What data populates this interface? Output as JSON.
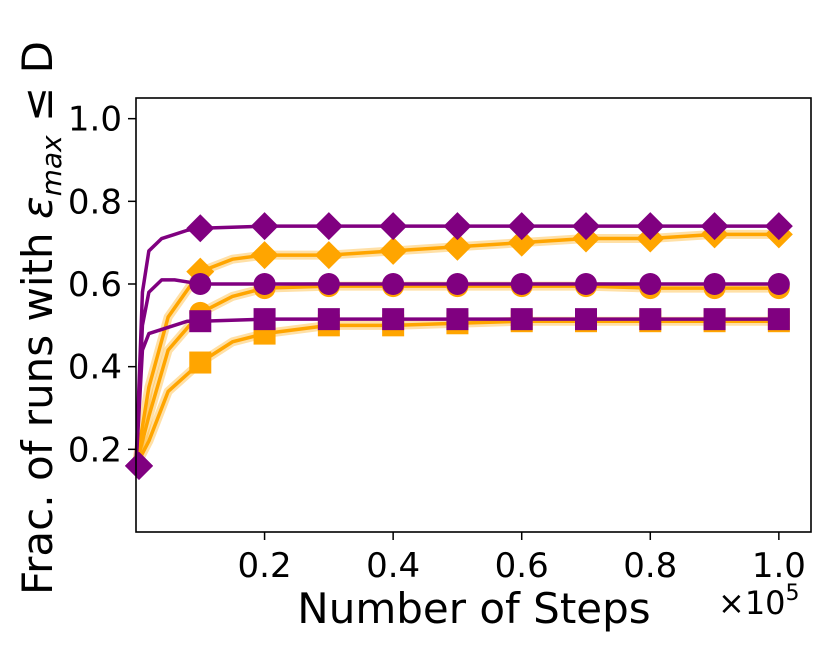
{
  "chart_data": {
    "type": "line",
    "xlabel": "Number of Steps",
    "ylabel_prefix": "Frac. of runs with ",
    "ylabel_eps": "ε",
    "ylabel_sub": "max",
    "ylabel_suffix": " ≤ D",
    "x_multiplier_base": "×10",
    "x_multiplier_exp": "5",
    "xlim": [
      0.0,
      1.05
    ],
    "ylim": [
      0.0,
      1.05
    ],
    "x_ticks": [
      0.2,
      0.4,
      0.6,
      0.8,
      1.0
    ],
    "x_tick_labels": [
      "0.2",
      "0.4",
      "0.6",
      "0.8",
      "1.0"
    ],
    "y_ticks": [
      0.2,
      0.4,
      0.6,
      0.8,
      1.0
    ],
    "y_tick_labels": [
      "0.2",
      "0.4",
      "0.6",
      "0.8",
      "1.0"
    ],
    "grid": false,
    "colors": {
      "purple": "#800080",
      "orange": "#FFA500"
    },
    "series": [
      {
        "color": "#FFA500",
        "marker": "diamond",
        "x": [
          0.0,
          0.02,
          0.05,
          0.1,
          0.15,
          0.2,
          0.3,
          0.4,
          0.5,
          0.6,
          0.7,
          0.8,
          0.9,
          1.0
        ],
        "y": [
          0.16,
          0.35,
          0.52,
          0.63,
          0.66,
          0.67,
          0.67,
          0.68,
          0.69,
          0.7,
          0.71,
          0.71,
          0.72,
          0.72
        ]
      },
      {
        "color": "#FFA500",
        "marker": "circle",
        "x": [
          0.0,
          0.02,
          0.05,
          0.1,
          0.15,
          0.2,
          0.3,
          0.4,
          0.5,
          0.6,
          0.7,
          0.8,
          0.9,
          1.0
        ],
        "y": [
          0.16,
          0.28,
          0.44,
          0.53,
          0.57,
          0.59,
          0.595,
          0.595,
          0.595,
          0.595,
          0.595,
          0.59,
          0.59,
          0.59
        ]
      },
      {
        "color": "#FFA500",
        "marker": "square",
        "x": [
          0.0,
          0.02,
          0.05,
          0.1,
          0.15,
          0.2,
          0.3,
          0.4,
          0.5,
          0.6,
          0.7,
          0.8,
          0.9,
          1.0
        ],
        "y": [
          0.16,
          0.22,
          0.34,
          0.41,
          0.46,
          0.48,
          0.5,
          0.5,
          0.505,
          0.51,
          0.51,
          0.51,
          0.51,
          0.51
        ]
      },
      {
        "color": "#800080",
        "marker": "diamond",
        "x": [
          0.0,
          0.01,
          0.02,
          0.04,
          0.06,
          0.08,
          0.1,
          0.2,
          0.3,
          0.4,
          0.5,
          0.6,
          0.7,
          0.8,
          0.9,
          1.0
        ],
        "y": [
          0.16,
          0.58,
          0.68,
          0.71,
          0.72,
          0.73,
          0.735,
          0.74,
          0.74,
          0.74,
          0.74,
          0.74,
          0.74,
          0.74,
          0.74,
          0.74
        ]
      },
      {
        "color": "#800080",
        "marker": "circle",
        "x": [
          0.0,
          0.01,
          0.02,
          0.04,
          0.06,
          0.08,
          0.1,
          0.2,
          0.3,
          0.4,
          0.5,
          0.6,
          0.7,
          0.8,
          0.9,
          1.0
        ],
        "y": [
          0.16,
          0.5,
          0.58,
          0.61,
          0.61,
          0.605,
          0.6,
          0.6,
          0.6,
          0.6,
          0.6,
          0.6,
          0.6,
          0.6,
          0.6,
          0.6
        ]
      },
      {
        "color": "#800080",
        "marker": "square",
        "x": [
          0.0,
          0.01,
          0.02,
          0.04,
          0.06,
          0.08,
          0.1,
          0.2,
          0.3,
          0.4,
          0.5,
          0.6,
          0.7,
          0.8,
          0.9,
          1.0
        ],
        "y": [
          0.16,
          0.44,
          0.48,
          0.49,
          0.5,
          0.51,
          0.51,
          0.515,
          0.515,
          0.515,
          0.515,
          0.515,
          0.515,
          0.515,
          0.515,
          0.515
        ]
      }
    ]
  }
}
